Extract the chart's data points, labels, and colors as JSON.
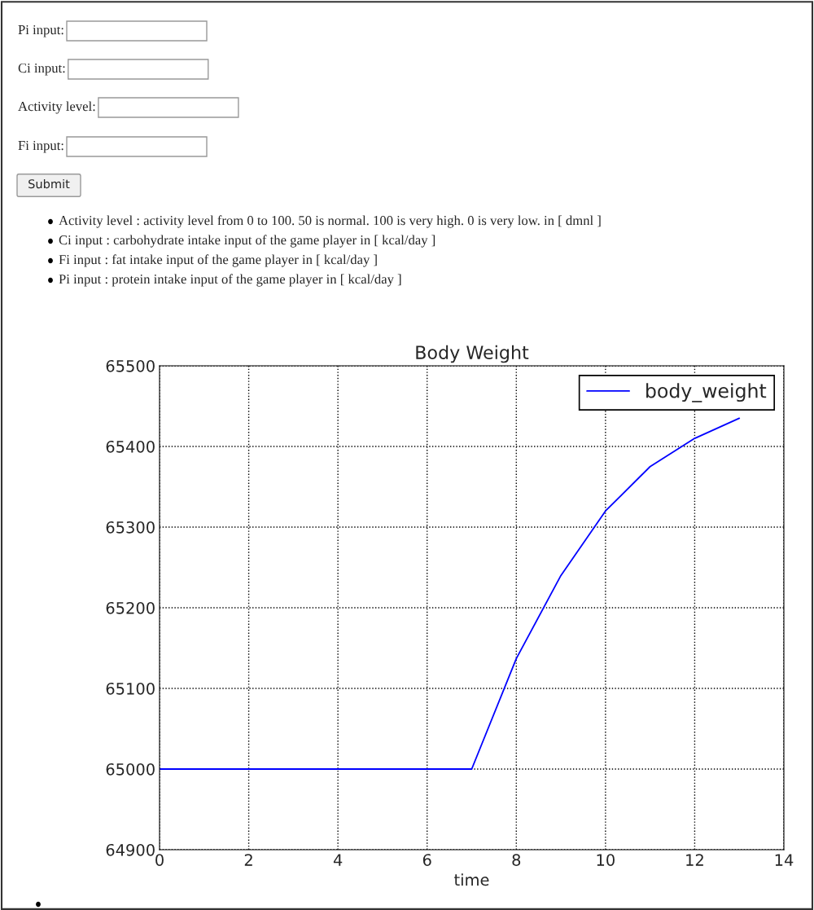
{
  "chart_data": {
    "type": "line",
    "title": "Body Weight",
    "xlabel": "time",
    "x": [
      0,
      1,
      2,
      3,
      4,
      5,
      6,
      7,
      8,
      9,
      10,
      11,
      12,
      13
    ],
    "series": [
      {
        "name": "body_weight",
        "color": "#0000ff",
        "values": [
          65000,
          65000,
          65000,
          65000,
          65000,
          65000,
          65000,
          65000,
          65137,
          65240,
          65320,
          65375,
          65410,
          65435
        ]
      }
    ],
    "xlim": [
      0,
      14
    ],
    "xticks": [
      0,
      2,
      4,
      6,
      8,
      10,
      12,
      14
    ],
    "ylim": [
      64900,
      65500
    ],
    "yticks": [
      64900,
      65000,
      65100,
      65200,
      65300,
      65400,
      65500
    ],
    "grid": true,
    "legend": "top right",
    "line_style": "solid",
    "marker": "none",
    "annotations": [
      "Pi input:",
      "Ci input:",
      "Activity level:",
      "Fi input:",
      "Submit",
      "Activity level : activity level from 0 to 100. 50 is normal. 100 is very high. 0 is very low. in [ dmnl ]",
      "Ci input : carbohydrate intake input of the game player in [ kcal/day ]",
      "Fi input : fat intake input of the game player in [ kcal/day ]",
      "Pi input : protein intake input of the game player in [ kcal/day ]"
    ]
  }
}
